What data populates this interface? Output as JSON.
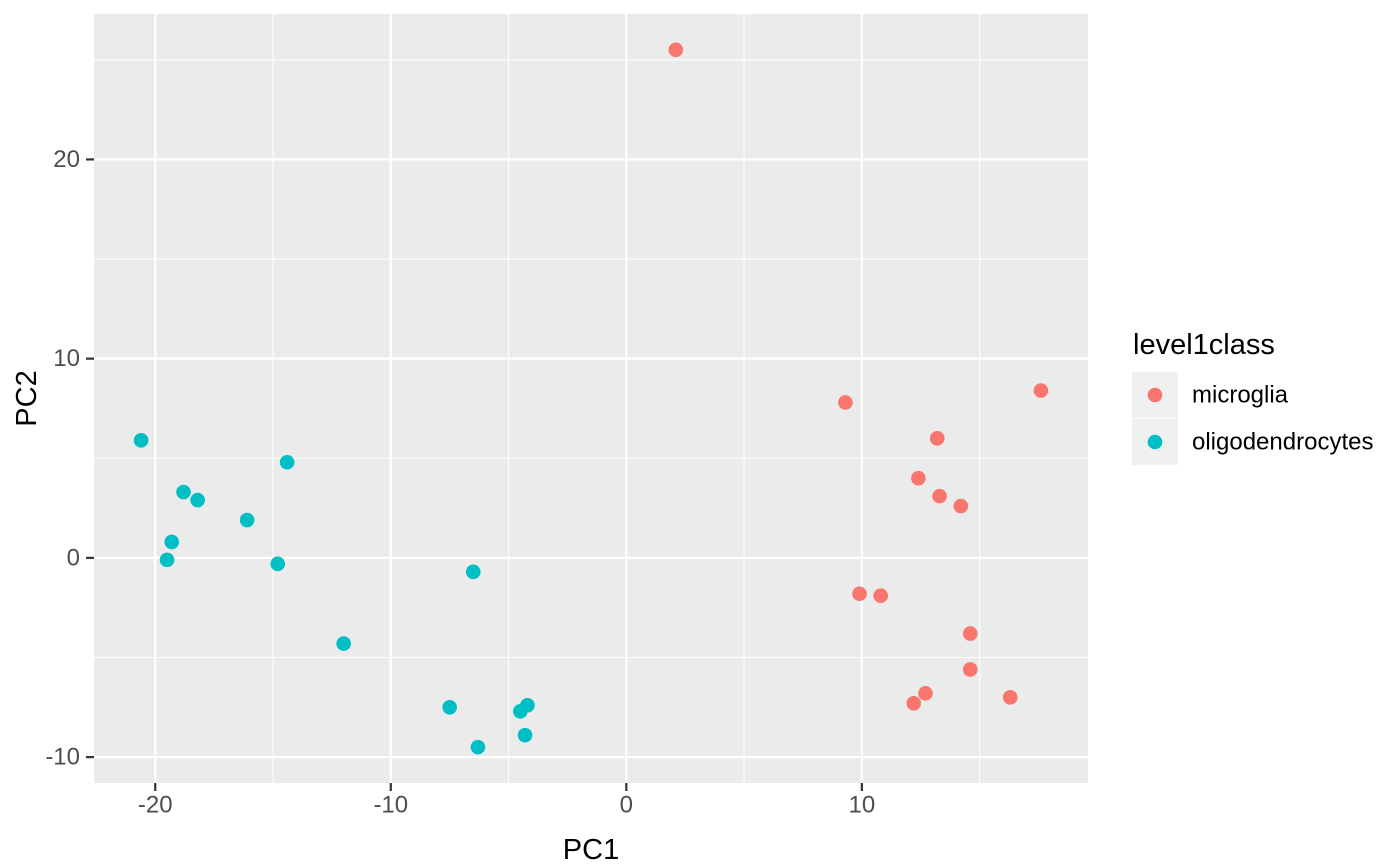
{
  "chart_data": {
    "type": "scatter",
    "title": "",
    "xlabel": "PC1",
    "ylabel": "PC2",
    "x_ticks": [
      -20,
      -10,
      0,
      10
    ],
    "y_ticks": [
      -10,
      0,
      10,
      20
    ],
    "x_minor_gridlines": [
      -15,
      -5,
      5,
      15
    ],
    "y_minor_gridlines": [
      -5,
      5,
      15,
      25
    ],
    "xlim": [
      -22.6,
      19.6
    ],
    "ylim": [
      -11.3,
      27.3
    ],
    "grid": true,
    "legend": {
      "title": "level1class",
      "position": "right",
      "entries": [
        {
          "label": "microglia",
          "color": "#F8766D"
        },
        {
          "label": "oligodendrocytes",
          "color": "#00BFC4"
        }
      ]
    },
    "series": [
      {
        "name": "microglia",
        "color": "#F8766D",
        "points": [
          [
            2.1,
            25.5
          ],
          [
            9.3,
            7.8
          ],
          [
            9.9,
            -1.8
          ],
          [
            10.8,
            -1.9
          ],
          [
            12.2,
            -7.3
          ],
          [
            12.4,
            4.0
          ],
          [
            12.7,
            -6.8
          ],
          [
            13.2,
            6.0
          ],
          [
            13.3,
            3.1
          ],
          [
            14.2,
            2.6
          ],
          [
            14.6,
            -3.8
          ],
          [
            14.6,
            -5.6
          ],
          [
            16.3,
            -7.0
          ],
          [
            17.6,
            8.4
          ]
        ]
      },
      {
        "name": "oligodendrocytes",
        "color": "#00BFC4",
        "points": [
          [
            -20.6,
            5.9
          ],
          [
            -19.5,
            -0.1
          ],
          [
            -19.3,
            0.8
          ],
          [
            -18.8,
            3.3
          ],
          [
            -18.2,
            2.9
          ],
          [
            -16.1,
            1.9
          ],
          [
            -14.8,
            -0.3
          ],
          [
            -14.4,
            4.8
          ],
          [
            -12.0,
            -4.3
          ],
          [
            -7.5,
            -7.5
          ],
          [
            -6.5,
            -0.7
          ],
          [
            -6.3,
            -9.5
          ],
          [
            -4.5,
            -7.7
          ],
          [
            -4.2,
            -7.4
          ],
          [
            -4.3,
            -8.9
          ]
        ]
      }
    ],
    "style": {
      "panel_bg": "#EBEBEB",
      "grid_color": "#FFFFFF",
      "tick_mark_color": "#333333",
      "tick_label_color": "#4D4D4D",
      "axis_title_color": "#000000",
      "legend_key_bg": "#F0F0F0",
      "legend_text_color": "#000000",
      "point_radius": 7.3
    }
  }
}
